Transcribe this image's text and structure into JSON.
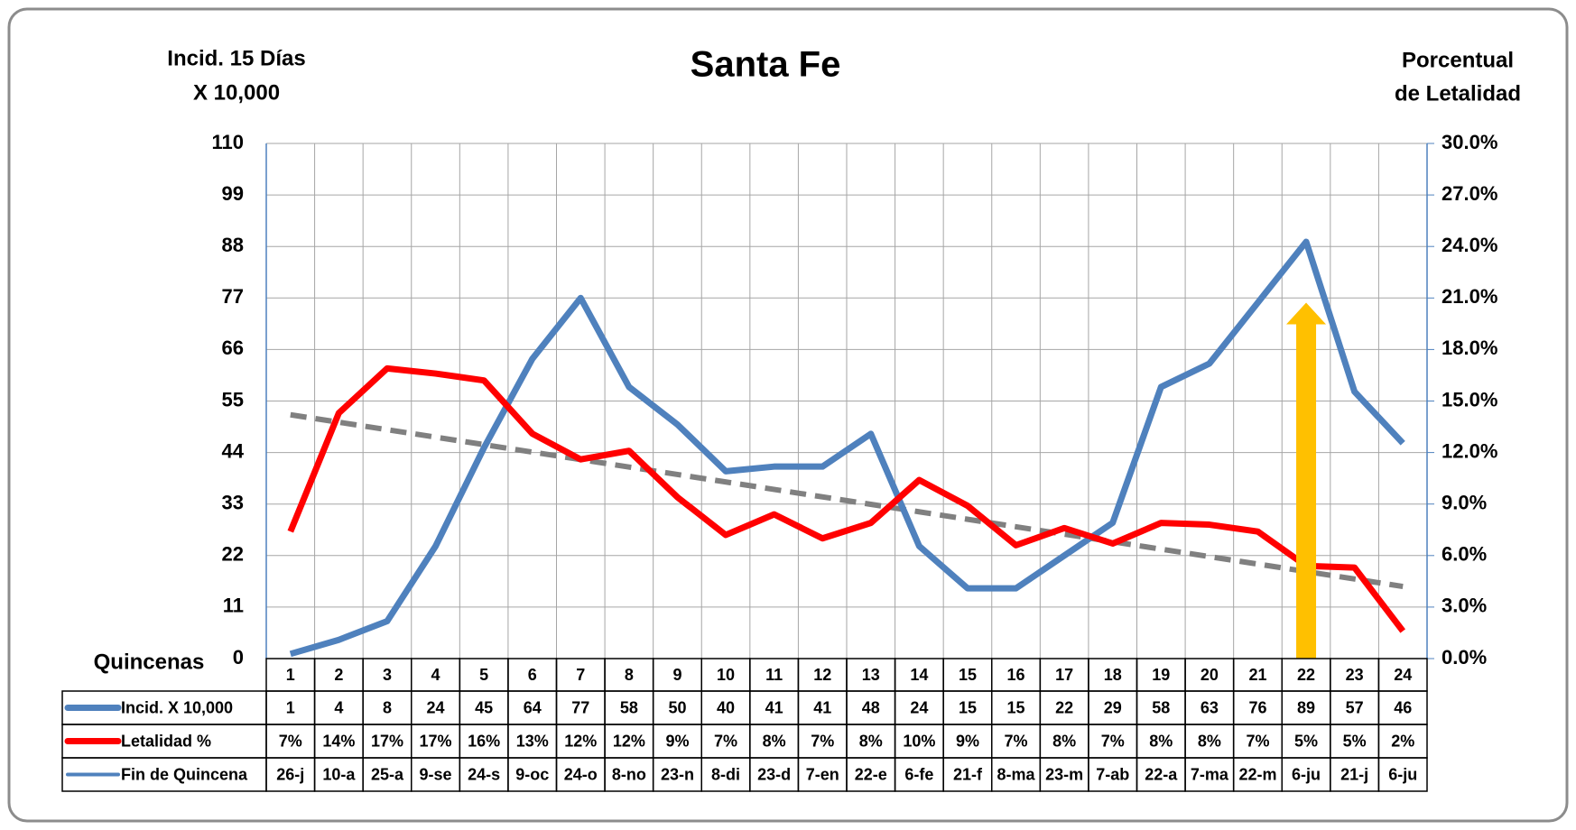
{
  "chart_data": {
    "type": "line",
    "title": "Santa Fe",
    "y_label": [
      "Incid. 15 Días",
      "X 10,000"
    ],
    "y2_label": [
      "Porcentual",
      "de Letalidad"
    ],
    "x_label": "Quincenas",
    "categories": [
      1,
      2,
      3,
      4,
      5,
      6,
      7,
      8,
      9,
      10,
      11,
      12,
      13,
      14,
      15,
      16,
      17,
      18,
      19,
      20,
      21,
      22,
      23,
      24
    ],
    "series": [
      {
        "name": "Incid. X 10,000",
        "color": "#4f81bd",
        "values": [
          1,
          4,
          8,
          24,
          45,
          64,
          77,
          58,
          50,
          40,
          41,
          41,
          48,
          24,
          15,
          15,
          22,
          29,
          58,
          63,
          76,
          89,
          57,
          46
        ]
      },
      {
        "name": "Letalidad %",
        "color": "#ff0000",
        "axis": "y2",
        "values": [
          7.4,
          14.3,
          16.9,
          16.6,
          16.2,
          13.1,
          11.6,
          12.1,
          9.4,
          7.2,
          8.4,
          7.0,
          7.9,
          10.4,
          8.9,
          6.6,
          7.6,
          6.7,
          7.9,
          7.8,
          7.4,
          5.4,
          5.3,
          1.6
        ],
        "value_labels": [
          "7%",
          "14%",
          "17%",
          "17%",
          "16%",
          "13%",
          "12%",
          "12%",
          "9%",
          "7%",
          "8%",
          "7%",
          "8%",
          "10%",
          "9%",
          "7%",
          "8%",
          "7%",
          "8%",
          "8%",
          "7%",
          "5%",
          "5%",
          "2%"
        ]
      }
    ],
    "date_row": {
      "name": "Fin de Quincena",
      "color": "#4f81bd",
      "values": [
        "26-j",
        "10-a",
        "25-a",
        "9-se",
        "24-s",
        "9-oc",
        "24-o",
        "8-no",
        "23-n",
        "8-di",
        "23-d",
        "7-en",
        "22-e",
        "6-fe",
        "21-f",
        "8-ma",
        "23-m",
        "7-ab",
        "22-a",
        "7-ma",
        "22-m",
        "6-ju",
        "21-j",
        "6-ju"
      ]
    },
    "trendline": {
      "axis": "y2",
      "color": "#808080",
      "dashed": true,
      "values": [
        14.2,
        4.2
      ]
    },
    "arrow": {
      "at": 22,
      "from": 0,
      "to": 76,
      "color": "#ffc000"
    },
    "ylim": [
      0,
      110
    ],
    "yticks": [
      0,
      11,
      22,
      33,
      44,
      55,
      66,
      77,
      88,
      99,
      110
    ],
    "y2lim": [
      0,
      30
    ],
    "y2ticks": [
      {
        "value": 0,
        "label": "0.0%"
      },
      {
        "value": 3,
        "label": "3.0%"
      },
      {
        "value": 6,
        "label": "6.0%"
      },
      {
        "value": 9,
        "label": "9.0%"
      },
      {
        "value": 12,
        "label": "12.0%"
      },
      {
        "value": 15,
        "label": "15.0%"
      },
      {
        "value": 18,
        "label": "18.0%"
      },
      {
        "value": 21,
        "label": "21.0%"
      },
      {
        "value": 24,
        "label": "24.0%"
      },
      {
        "value": 27,
        "label": "27.0%"
      },
      {
        "value": 30,
        "label": "30.0%"
      }
    ],
    "grid": true
  }
}
